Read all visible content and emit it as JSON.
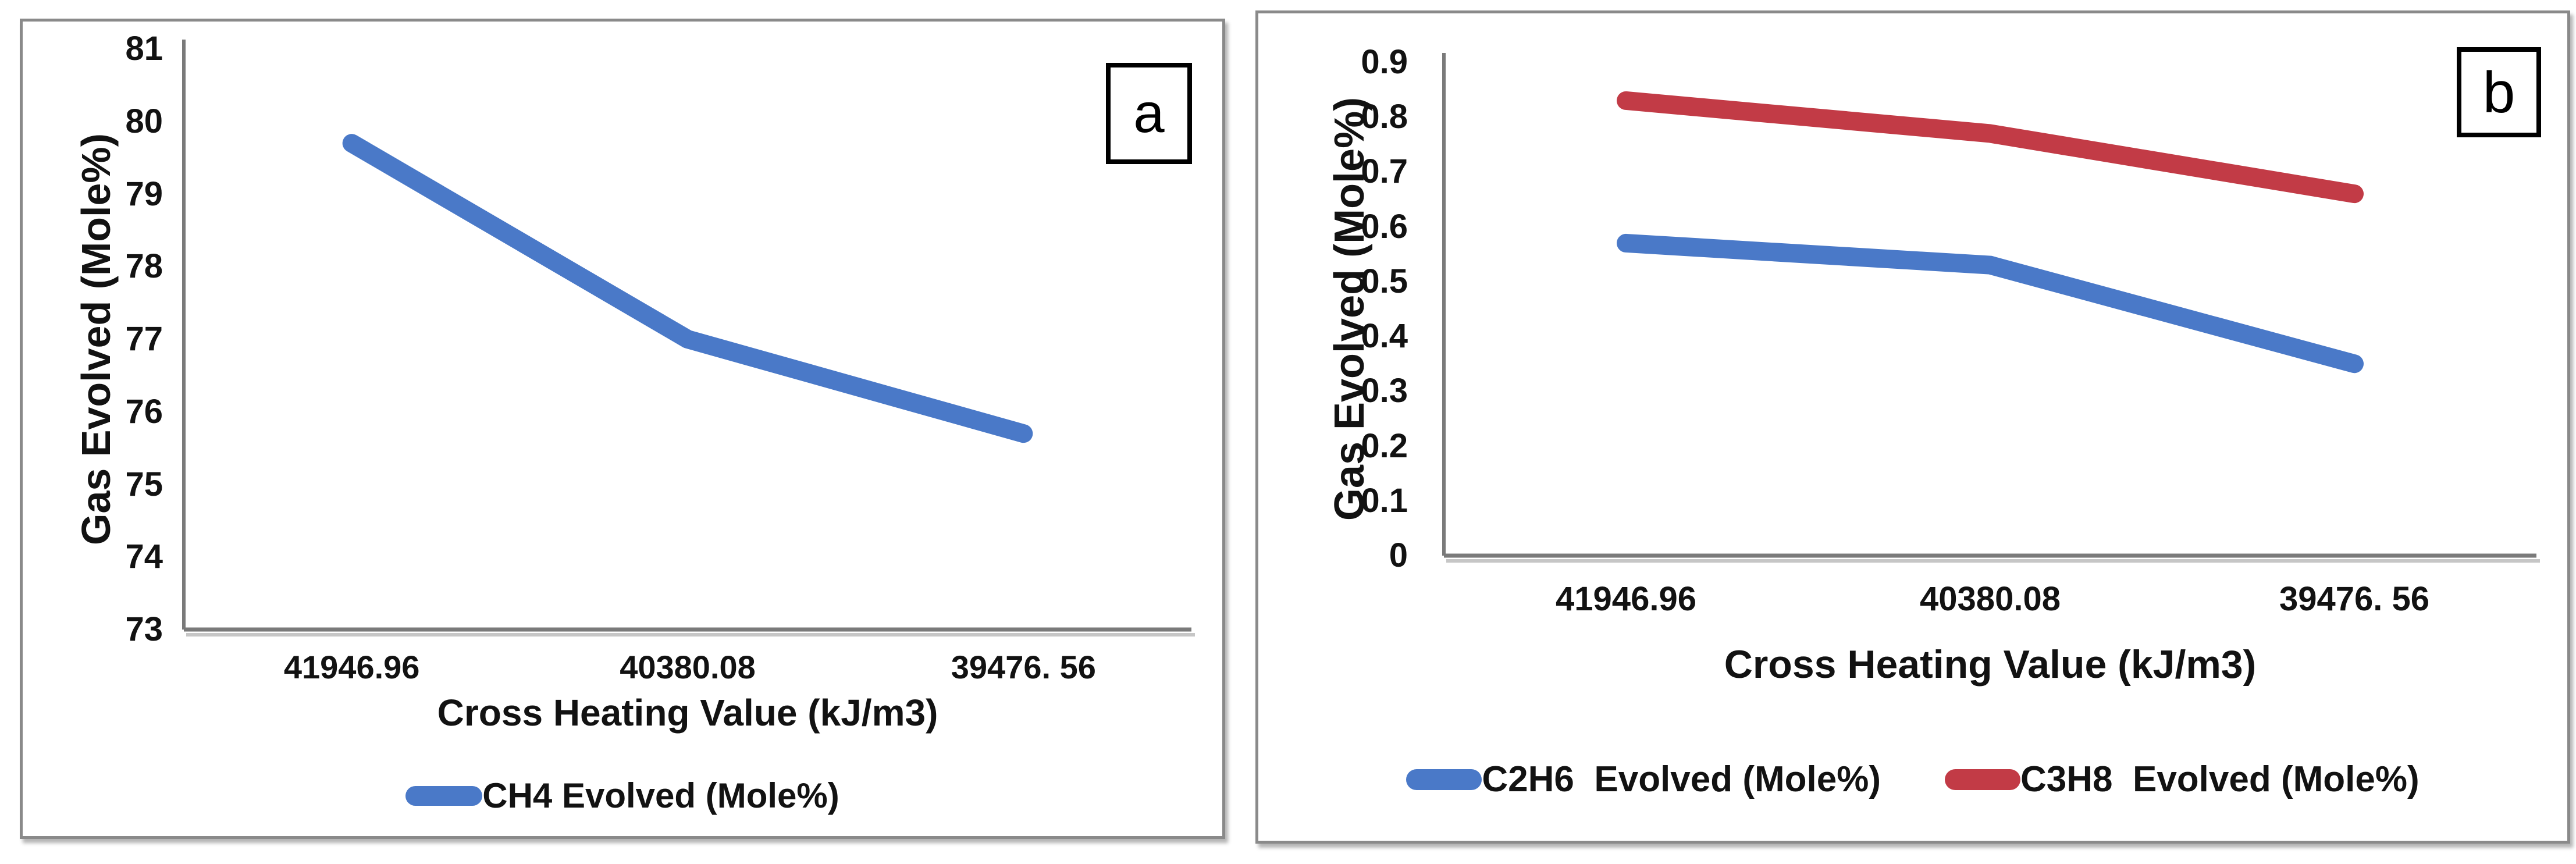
{
  "figure": {
    "background": "#ffffff",
    "text_color": "#121212",
    "axis_color": "#7a7a7a",
    "panel_border_color": "#8a8a8a"
  },
  "panels": [
    {
      "letter": "a"
    },
    {
      "letter": "b"
    }
  ],
  "chart_data": [
    {
      "type": "line",
      "title": "",
      "categories": [
        "41946.96",
        "40380.08",
        "39476. 56"
      ],
      "xlabel": "Cross Heating Value (kJ/m3)",
      "ylabel": "Gas Evolved (Mole%)",
      "ylim": [
        73,
        81
      ],
      "ytick_labels": [
        "81",
        "80",
        "79",
        "78",
        "77",
        "76",
        "75",
        "74",
        "73"
      ],
      "grid": false,
      "legend_position": "bottom",
      "series": [
        {
          "name": "CH4 Evolved (Mole%)",
          "color": "#4a79c8",
          "values": [
            79.7,
            77.0,
            75.7
          ]
        }
      ]
    },
    {
      "type": "line",
      "title": "",
      "categories": [
        "41946.96",
        "40380.08",
        "39476. 56"
      ],
      "xlabel": "Cross Heating Value (kJ/m3)",
      "ylabel": "Gas Evolved (Mole%)",
      "ylim": [
        0,
        0.9
      ],
      "ytick_labels": [
        "0.9",
        "0.8",
        "0.7",
        "0.6",
        "0.5",
        "0.4",
        "0.3",
        "0.2",
        "0.1",
        "0"
      ],
      "grid": false,
      "legend_position": "bottom",
      "series": [
        {
          "name": "C2H6  Evolved (Mole%)",
          "color": "#4a79c8",
          "values": [
            0.57,
            0.53,
            0.35
          ]
        },
        {
          "name": "C3H8  Evolved (Mole%)",
          "color": "#c23b46",
          "values": [
            0.83,
            0.77,
            0.66
          ]
        }
      ]
    }
  ]
}
